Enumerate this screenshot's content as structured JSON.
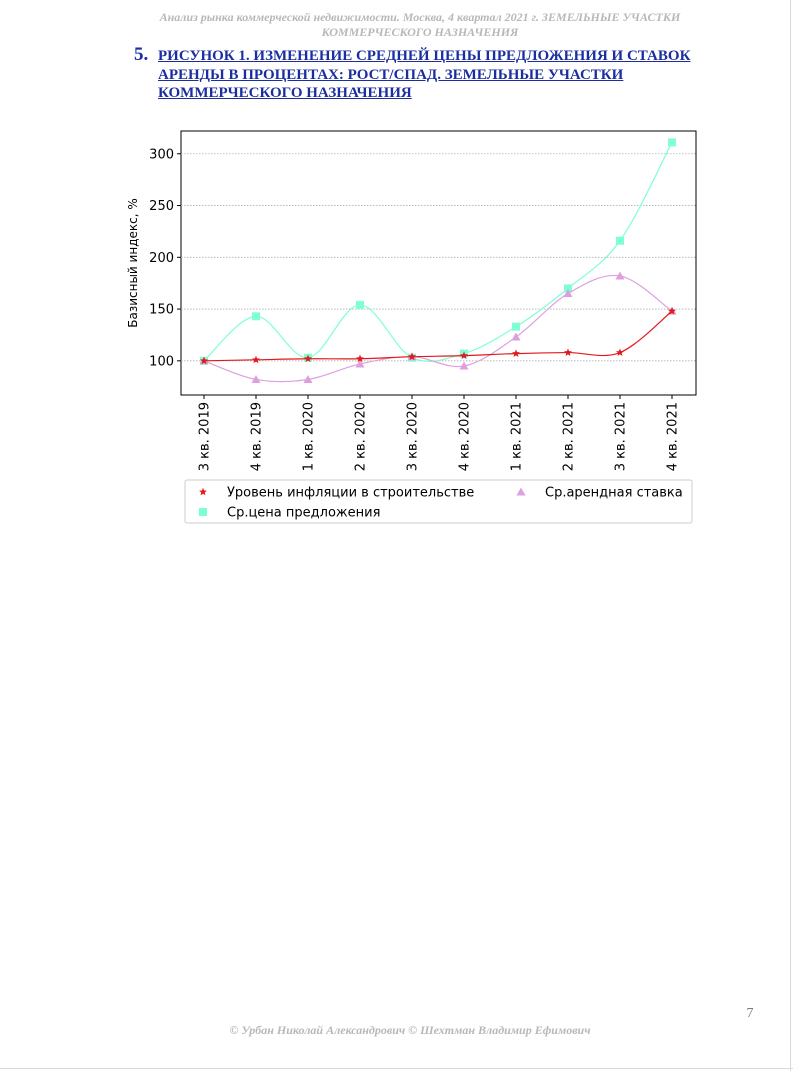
{
  "header": {
    "line1": "Анализ рынка коммерческой недвижимости.  Москва, 4 квартал 2021 г.   ЗЕМЕЛЬНЫЕ УЧАСТКИ",
    "line2": "КОММЕРЧЕСКОГО НАЗНАЧЕНИЯ"
  },
  "section": {
    "number": "5.",
    "title": "РИСУНОК 1. ИЗМЕНЕНИЕ СРЕДНЕЙ ЦЕНЫ ПРЕДЛОЖЕНИЯ И СТАВОК АРЕНДЫ В ПРОЦЕНТАХ: РОСТ/СПАД. ЗЕМЕЛЬНЫЕ УЧАСТКИ КОММЕРЧЕСКОГО НАЗНАЧЕНИЯ"
  },
  "chart_data": {
    "type": "line",
    "title": "",
    "xlabel": "",
    "ylabel": "Базисный индекс, %",
    "categories": [
      "3 кв. 2019",
      "4 кв. 2019",
      "1 кв. 2020",
      "2 кв. 2020",
      "3 кв. 2020",
      "4 кв. 2020",
      "1 кв. 2021",
      "2 кв. 2021",
      "3 кв. 2021",
      "4 кв. 2021"
    ],
    "yticks": [
      100,
      150,
      200,
      250,
      300
    ],
    "ylim": [
      67,
      322
    ],
    "grid": "horizontal, dotted",
    "legend_position": "bottom",
    "series": [
      {
        "name": "Уровень инфляции в строительстве",
        "marker": "star",
        "color": "#e31a1c",
        "values": [
          100,
          101,
          102,
          102,
          104,
          105,
          107,
          108,
          108,
          148
        ]
      },
      {
        "name": "Ср.арендная ставка",
        "marker": "triangle",
        "color": "#dda0dd",
        "values": [
          100,
          82,
          82,
          97,
          104,
          95,
          123,
          165,
          182,
          148
        ]
      },
      {
        "name": "Ср.цена предложения",
        "marker": "square",
        "color": "#7fffd4",
        "values": [
          100,
          143,
          103,
          154,
          103,
          107,
          133,
          170,
          216,
          311
        ]
      }
    ]
  },
  "footer": {
    "text": "© Урбан Николай Александрович   © Шехтман Владимир Ефимович",
    "page_number": "7"
  }
}
